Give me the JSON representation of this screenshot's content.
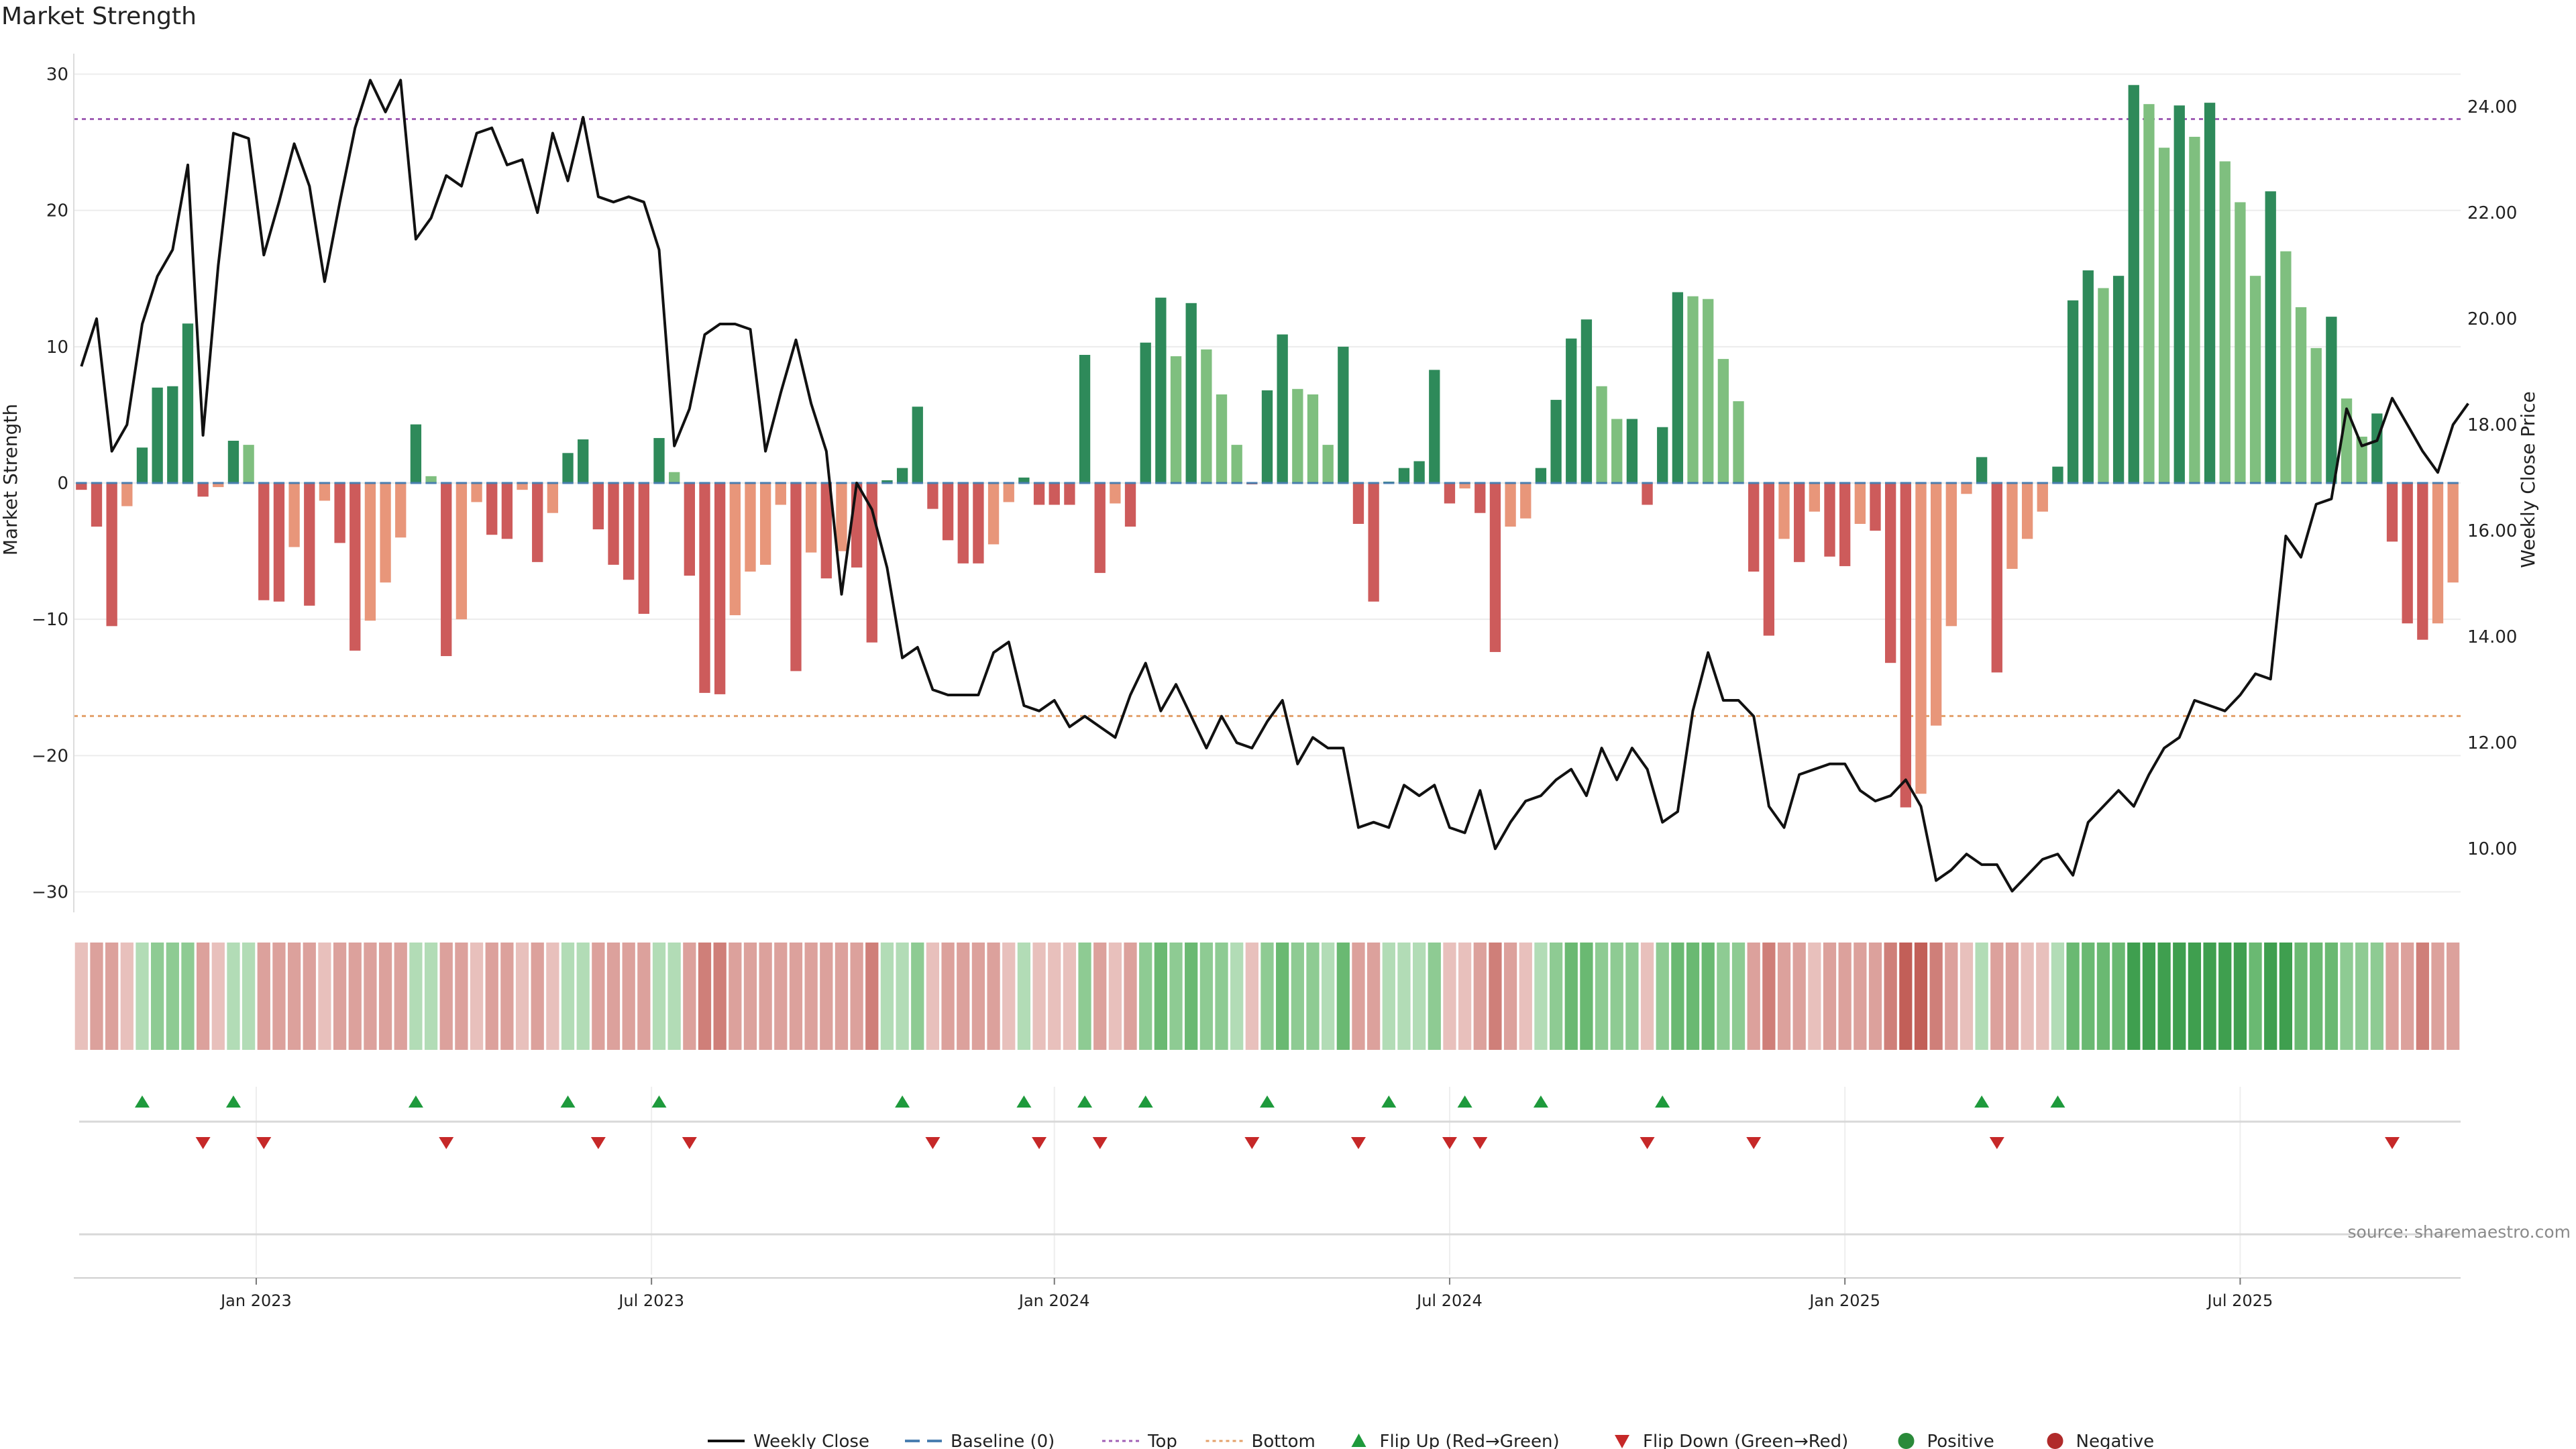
{
  "chart_data": {
    "type": "bar",
    "title": "Market Strength",
    "ylabel": "Market Strength",
    "ylabel_right": "Weekly Close Price",
    "ylim": [
      -31.5,
      31.5
    ],
    "ylim_right": [
      8.8,
      25.0
    ],
    "yticks": [
      -30,
      -20,
      -10,
      0,
      10,
      20,
      30
    ],
    "yticks_labels": [
      "−30",
      "−20",
      "−10",
      "0",
      "10",
      "20",
      "30"
    ],
    "yticks_right": [
      10,
      12,
      14,
      16,
      18,
      20,
      22,
      24
    ],
    "yticks_right_labels": [
      "10.00",
      "12.00",
      "14.00",
      "16.00",
      "18.00",
      "20.00",
      "22.00",
      "24.00"
    ],
    "x_month_ticks": [
      12,
      38,
      64.5,
      90.5,
      116.5,
      142.5
    ],
    "x_month_labels": [
      "Jan 2023",
      "Jul 2023",
      "Jan 2024",
      "Jul 2024",
      "Jan 2025",
      "Jul 2025"
    ],
    "top_level": 26.7,
    "bottom_level": -17.1,
    "strength": [
      -0.5,
      -3.2,
      -10.5,
      -1.7,
      2.6,
      7.0,
      7.1,
      11.7,
      -1.0,
      -0.3,
      3.1,
      2.8,
      -8.6,
      -8.7,
      -4.7,
      -9.0,
      -1.3,
      -4.4,
      -12.3,
      -10.1,
      -7.3,
      -4.0,
      4.3,
      0.5,
      -12.7,
      -10.0,
      -1.4,
      -3.8,
      -4.1,
      -0.5,
      -5.8,
      -2.2,
      2.2,
      3.2,
      -3.4,
      -6.0,
      -7.1,
      -9.6,
      3.3,
      0.8,
      -6.8,
      -15.4,
      -15.5,
      -9.7,
      -6.5,
      -6.0,
      -1.6,
      -13.8,
      -5.1,
      -7.0,
      -5.0,
      -6.2,
      -11.7,
      0.2,
      1.1,
      5.6,
      -1.9,
      -4.2,
      -5.9,
      -5.9,
      -4.5,
      -1.4,
      0.4,
      -1.6,
      -1.6,
      -1.6,
      9.4,
      -6.6,
      -1.5,
      -3.2,
      10.3,
      13.6,
      9.3,
      13.2,
      9.8,
      6.5,
      2.8,
      -0.1,
      6.8,
      10.9,
      6.9,
      6.5,
      2.8,
      10.0,
      -3.0,
      -8.7,
      0.1,
      1.1,
      1.6,
      8.3,
      -1.5,
      -0.4,
      -2.2,
      -12.4,
      -3.2,
      -2.6,
      1.1,
      6.1,
      10.6,
      12.0,
      7.1,
      4.7,
      4.7,
      -1.6,
      4.1,
      14.0,
      13.7,
      13.5,
      9.1,
      6.0,
      -6.5,
      -11.2,
      -4.1,
      -5.8,
      -2.1,
      -5.4,
      -6.1,
      -3.0,
      -3.5,
      -13.2,
      -23.8,
      -22.8,
      -17.8,
      -10.5,
      -0.8,
      1.9,
      -13.9,
      -6.3,
      -4.1,
      -2.1,
      1.2,
      13.4,
      15.6,
      14.3,
      15.2,
      29.2,
      27.8,
      24.6,
      27.7,
      25.4,
      27.9,
      23.6,
      20.6,
      15.2,
      21.4,
      17.0,
      12.9,
      9.9,
      12.2,
      6.2,
      3.4,
      5.1,
      -4.3,
      -10.3,
      -11.5,
      -10.3,
      -7.3
    ],
    "price": [
      19.1,
      20.0,
      17.5,
      18.0,
      19.9,
      20.8,
      21.3,
      22.9,
      17.8,
      21.0,
      23.5,
      23.4,
      21.2,
      22.2,
      23.3,
      22.5,
      20.7,
      22.2,
      23.6,
      24.5,
      23.9,
      24.5,
      21.5,
      21.9,
      22.7,
      22.5,
      23.5,
      23.6,
      22.9,
      23.0,
      22.0,
      23.5,
      22.6,
      23.8,
      22.3,
      22.2,
      22.3,
      22.2,
      21.3,
      17.6,
      18.3,
      19.7,
      19.9,
      19.9,
      19.8,
      17.5,
      18.6,
      19.6,
      18.4,
      17.5,
      14.8,
      16.9,
      16.4,
      15.3,
      13.6,
      13.8,
      13.0,
      12.9,
      12.9,
      12.9,
      13.7,
      13.9,
      12.7,
      12.6,
      12.8,
      12.3,
      12.5,
      12.3,
      12.1,
      12.9,
      13.5,
      12.6,
      13.1,
      12.5,
      11.9,
      12.5,
      12.0,
      11.9,
      12.4,
      12.8,
      11.6,
      12.1,
      11.9,
      11.9,
      10.4,
      10.5,
      10.4,
      11.2,
      11.0,
      11.2,
      10.4,
      10.3,
      11.1,
      10.0,
      10.5,
      10.9,
      11.0,
      11.3,
      11.5,
      11.0,
      11.9,
      11.3,
      11.9,
      11.5,
      10.5,
      10.7,
      12.6,
      13.7,
      12.8,
      12.8,
      12.5,
      10.8,
      10.4,
      11.4,
      11.5,
      11.6,
      11.6,
      11.1,
      10.9,
      11.0,
      11.3,
      10.8,
      9.4,
      9.6,
      9.9,
      9.7,
      9.7,
      9.2,
      9.5,
      9.8,
      9.9,
      9.5,
      10.5,
      10.8,
      11.1,
      10.8,
      11.4,
      11.9,
      12.1,
      12.8,
      12.7,
      12.6,
      12.9,
      13.3,
      13.2,
      15.9,
      15.5,
      16.5,
      16.6,
      18.3,
      17.6,
      17.7,
      18.5,
      18.0,
      17.5,
      17.1,
      18.0,
      18.4
    ],
    "heat_level": [
      -1,
      -2,
      -2,
      -1,
      1,
      2,
      2,
      2,
      -2,
      -1,
      1,
      1,
      -2,
      -2,
      -2,
      -2,
      -1,
      -2,
      -2,
      -2,
      -2,
      -2,
      1,
      1,
      -2,
      -2,
      -1,
      -2,
      -2,
      -1,
      -2,
      -1,
      1,
      1,
      -2,
      -2,
      -2,
      -2,
      1,
      1,
      -2,
      -3,
      -3,
      -2,
      -2,
      -2,
      -2,
      -2,
      -2,
      -2,
      -2,
      -2,
      -3,
      1,
      1,
      2,
      -1,
      -2,
      -2,
      -2,
      -2,
      -1,
      1,
      -1,
      -1,
      -1,
      2,
      -2,
      -1,
      -2,
      2,
      3,
      2,
      3,
      2,
      2,
      1,
      -1,
      2,
      3,
      2,
      2,
      1,
      3,
      -2,
      -2,
      1,
      1,
      1,
      2,
      -1,
      -1,
      -2,
      -3,
      -2,
      -1,
      1,
      2,
      3,
      3,
      2,
      2,
      2,
      -1,
      2,
      3,
      3,
      3,
      2,
      2,
      -2,
      -3,
      -2,
      -2,
      -1,
      -2,
      -2,
      -2,
      -2,
      -3,
      -4,
      -4,
      -3,
      -2,
      -1,
      1,
      -2,
      -2,
      -1,
      -1,
      1,
      3,
      3,
      3,
      3,
      4,
      4,
      4,
      4,
      4,
      4,
      4,
      4,
      3,
      4,
      4,
      3,
      3,
      3,
      2,
      2,
      2,
      -2,
      -2,
      -3,
      -2,
      -2
    ],
    "flip_up_weeks": [
      4,
      10,
      22,
      32,
      38,
      54,
      62,
      66,
      70,
      78,
      86,
      91,
      96,
      104,
      125,
      130
    ],
    "flip_down_weeks": [
      8,
      12,
      24,
      34,
      40,
      56,
      63,
      67,
      77,
      84,
      90,
      92,
      103,
      110,
      126,
      152
    ],
    "source_text": "source: sharemaestro.com",
    "legend": [
      {
        "label": "Weekly Close",
        "kind": "line",
        "color": "#111111"
      },
      {
        "label": "Baseline (0)",
        "kind": "dash",
        "color": "#4a7fb0"
      },
      {
        "label": "Top",
        "kind": "dot",
        "color": "#a05fb5"
      },
      {
        "label": "Bottom",
        "kind": "dot",
        "color": "#e3a06a"
      },
      {
        "label": "Flip Up (Red→Green)",
        "kind": "tri-up",
        "color": "#1e9a3c"
      },
      {
        "label": "Flip Down (Green→Red)",
        "kind": "tri-down",
        "color": "#c62828"
      },
      {
        "label": "Positive",
        "kind": "circle",
        "color": "#2a8a3a"
      },
      {
        "label": "Negative",
        "kind": "circle",
        "color": "#b02a2a"
      }
    ],
    "colors": {
      "pos_strong": "#2e8a5a",
      "pos_fade": "#7fbf7f",
      "neg_strong": "#cd5b5b",
      "neg_fade": "#e8967a",
      "price_line": "#111111",
      "top_line": "#a05fb5",
      "bottom_line": "#e3a06a",
      "baseline": "#4a7fb0",
      "heat_pos": [
        "#d6ecd8",
        "#b2dcb6",
        "#8ecb93",
        "#6ab972",
        "#3f9f4f"
      ],
      "heat_neg": [
        "#f2d7d5",
        "#e8c0bc",
        "#dca19c",
        "#cf7f79",
        "#c25f58"
      ]
    }
  }
}
